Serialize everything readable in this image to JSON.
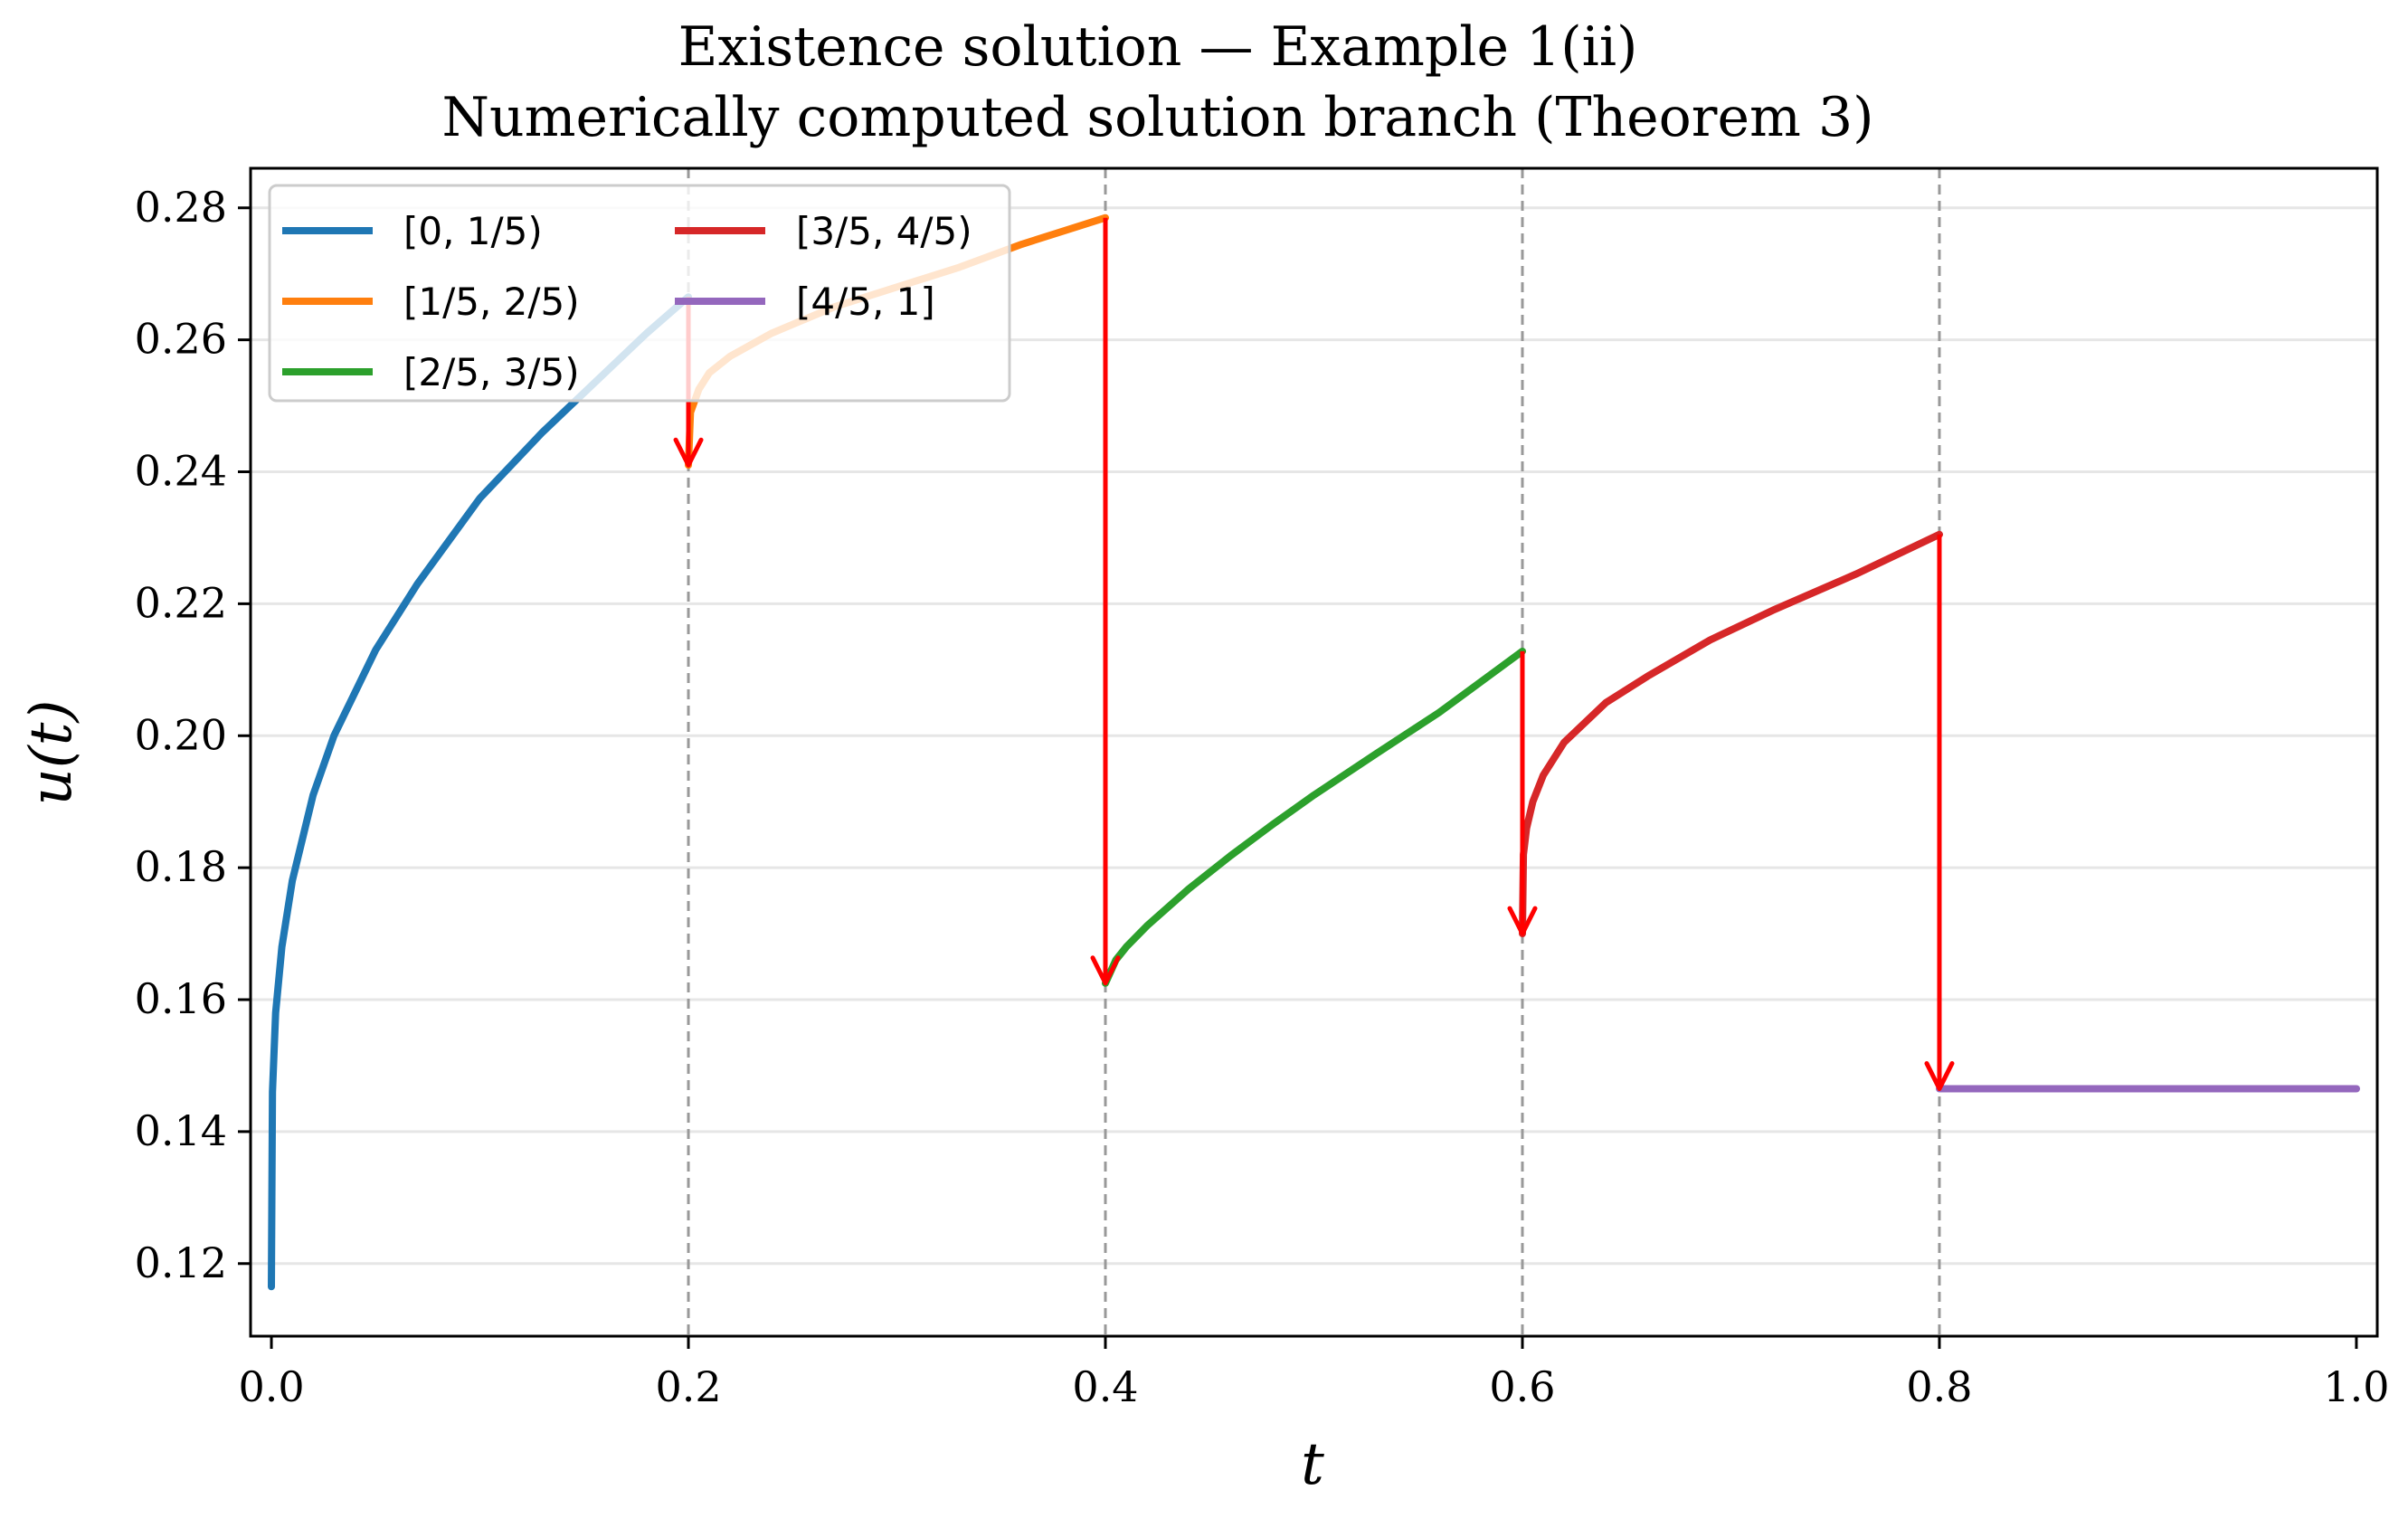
{
  "chart_data": {
    "type": "line",
    "title": "Existence solution — Example 1(ii)",
    "subtitle": "Numerically computed solution branch (Theorem 3)",
    "xlabel": "t",
    "ylabel": "u(t)",
    "xlim": [
      -0.01,
      1.01
    ],
    "ylim": [
      0.109,
      0.286
    ],
    "grid": "y-axis",
    "legend_placement": "top-left",
    "legend_columns": 2,
    "x_ticks": [
      0.0,
      0.2,
      0.4,
      0.6,
      0.8,
      1.0
    ],
    "x_tick_labels": [
      "0.0",
      "0.2",
      "0.4",
      "0.6",
      "0.8",
      "1.0"
    ],
    "y_ticks": [
      0.12,
      0.14,
      0.16,
      0.18,
      0.2,
      0.22,
      0.24,
      0.26,
      0.28
    ],
    "y_tick_labels": [
      "0.12",
      "0.14",
      "0.16",
      "0.18",
      "0.20",
      "0.22",
      "0.24",
      "0.26",
      "0.28"
    ],
    "breakpoints": [
      0.2,
      0.4,
      0.6,
      0.8
    ],
    "series": [
      {
        "name": "[0, 1/5)",
        "color": "#1f77b4",
        "x": [
          0.0,
          0.0005,
          0.002,
          0.005,
          0.01,
          0.02,
          0.03,
          0.05,
          0.07,
          0.1,
          0.13,
          0.16,
          0.18,
          0.2
        ],
        "y": [
          0.1165,
          0.146,
          0.158,
          0.168,
          0.178,
          0.191,
          0.2,
          0.213,
          0.223,
          0.236,
          0.246,
          0.255,
          0.261,
          0.2665
        ]
      },
      {
        "name": "[1/5, 2/5)",
        "color": "#ff7f0e",
        "x": [
          0.2,
          0.201,
          0.205,
          0.21,
          0.22,
          0.24,
          0.27,
          0.3,
          0.33,
          0.36,
          0.4
        ],
        "y": [
          0.241,
          0.249,
          0.2525,
          0.255,
          0.2575,
          0.261,
          0.265,
          0.268,
          0.271,
          0.2745,
          0.2785
        ]
      },
      {
        "name": "[2/5, 3/5)",
        "color": "#2ca02c",
        "x": [
          0.4,
          0.405,
          0.41,
          0.42,
          0.44,
          0.46,
          0.48,
          0.5,
          0.53,
          0.56,
          0.6
        ],
        "y": [
          0.1625,
          0.166,
          0.168,
          0.1712,
          0.1768,
          0.1818,
          0.1865,
          0.191,
          0.1973,
          0.2035,
          0.2128
        ]
      },
      {
        "name": "[3/5, 4/5)",
        "color": "#d62728",
        "x": [
          0.6,
          0.6005,
          0.602,
          0.605,
          0.61,
          0.62,
          0.64,
          0.66,
          0.69,
          0.72,
          0.76,
          0.8
        ],
        "y": [
          0.17,
          0.182,
          0.186,
          0.19,
          0.194,
          0.199,
          0.205,
          0.209,
          0.2145,
          0.219,
          0.2245,
          0.2305
        ]
      },
      {
        "name": "[4/5, 1]",
        "color": "#9467bd",
        "x": [
          0.8,
          1.0
        ],
        "y": [
          0.1465,
          0.1465
        ]
      }
    ],
    "jump_arrows": [
      {
        "x": 0.2,
        "y_from": 0.2665,
        "y_to": 0.241
      },
      {
        "x": 0.4,
        "y_from": 0.2785,
        "y_to": 0.1625
      },
      {
        "x": 0.6,
        "y_from": 0.2128,
        "y_to": 0.17
      },
      {
        "x": 0.8,
        "y_from": 0.2305,
        "y_to": 0.1465
      }
    ],
    "arrow_color": "#ff0000"
  }
}
